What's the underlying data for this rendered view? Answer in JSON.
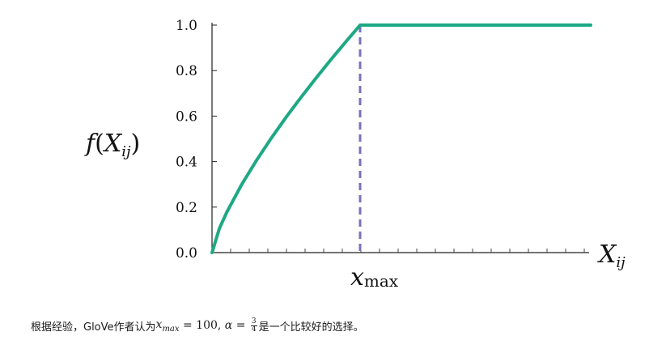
{
  "chart_data": {
    "type": "line",
    "title": "",
    "ylabel_f": "f",
    "ylabel_X": "X",
    "ylabel_sub": "ij",
    "xlabel_X": "X",
    "xlabel_sub": "ij",
    "marker_label_x": "x",
    "marker_label_sub": "max",
    "yticks": [
      "0.0",
      "0.2",
      "0.4",
      "0.6",
      "0.8",
      "1.0"
    ],
    "ylim": [
      0,
      1
    ],
    "xlim": [
      0,
      2
    ],
    "x_max": 1,
    "alpha": 0.75,
    "series": [
      {
        "color": "#1ea884",
        "x": [
          0,
          0.05,
          0.1,
          0.2,
          0.3,
          0.4,
          0.5,
          0.6,
          0.7,
          0.8,
          0.9,
          1.0,
          1.2,
          1.4,
          1.6,
          1.8,
          1.6
        ],
        "y": [
          0,
          0.106,
          0.178,
          0.299,
          0.405,
          0.503,
          0.595,
          0.682,
          0.765,
          0.846,
          0.924,
          1.0,
          1.0,
          1.0,
          1.0,
          1.0,
          1.0
        ]
      }
    ],
    "vline_color": "#7b6fb8",
    "grid": false
  },
  "caption": {
    "prefix": "根据经验，GloVe作者认为",
    "x": "x",
    "x_sub": "max",
    "eq1": " = 100, ",
    "alpha": "α",
    "eq2": " = ",
    "frac_num": "3",
    "frac_den": "4",
    "suffix": "是一个比较好的选择。"
  }
}
